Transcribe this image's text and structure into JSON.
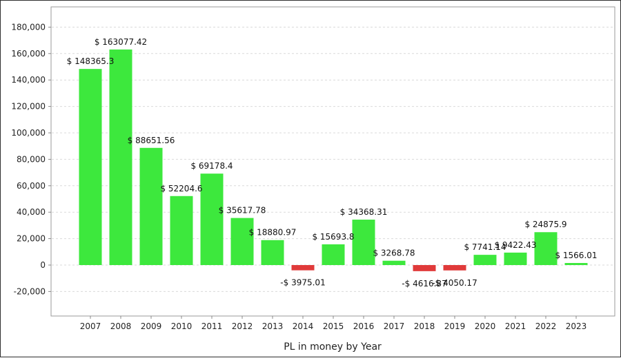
{
  "chart_data": {
    "type": "bar",
    "xlabel": "PL in money by Year",
    "ylabel": "",
    "title": "",
    "ylim": [
      -40000,
      195000
    ],
    "yticks": [
      -20000,
      0,
      20000,
      40000,
      60000,
      80000,
      100000,
      120000,
      140000,
      160000,
      180000
    ],
    "ytick_labels": [
      "-20,000",
      "0",
      "20,000",
      "40,000",
      "60,000",
      "80,000",
      "100,000",
      "120,000",
      "140,000",
      "160,000",
      "180,000"
    ],
    "grid": true,
    "categories": [
      "2007",
      "2008",
      "2009",
      "2010",
      "2011",
      "2012",
      "2013",
      "2014",
      "2015",
      "2016",
      "2017",
      "2018",
      "2019",
      "2020",
      "2021",
      "2022",
      "2023"
    ],
    "values": [
      148365.3,
      163077.42,
      88651.56,
      52204.6,
      69178.4,
      35617.78,
      18880.97,
      -3975.01,
      15693.8,
      34368.31,
      3268.78,
      -4616.87,
      -4050.17,
      7741.14,
      9422.43,
      24875.9,
      1566.01
    ],
    "labels": [
      "$ 148365.3",
      "$ 163077.42",
      "$ 88651.56",
      "$ 52204.6",
      "$ 69178.4",
      "$ 35617.78",
      "$ 18880.97",
      "-$ 3975.01",
      "$ 15693.8",
      "$ 34368.31",
      "$ 3268.78",
      "-$ 4616.87",
      "-$ 4050.17",
      "$ 7741.14",
      "$ 9422.43",
      "$ 24875.9",
      "$ 1566.01"
    ],
    "colors": {
      "positive": "#3de83d",
      "negative": "#e03a3a",
      "grid": "#d9d9d9",
      "axis": "#888888"
    }
  }
}
